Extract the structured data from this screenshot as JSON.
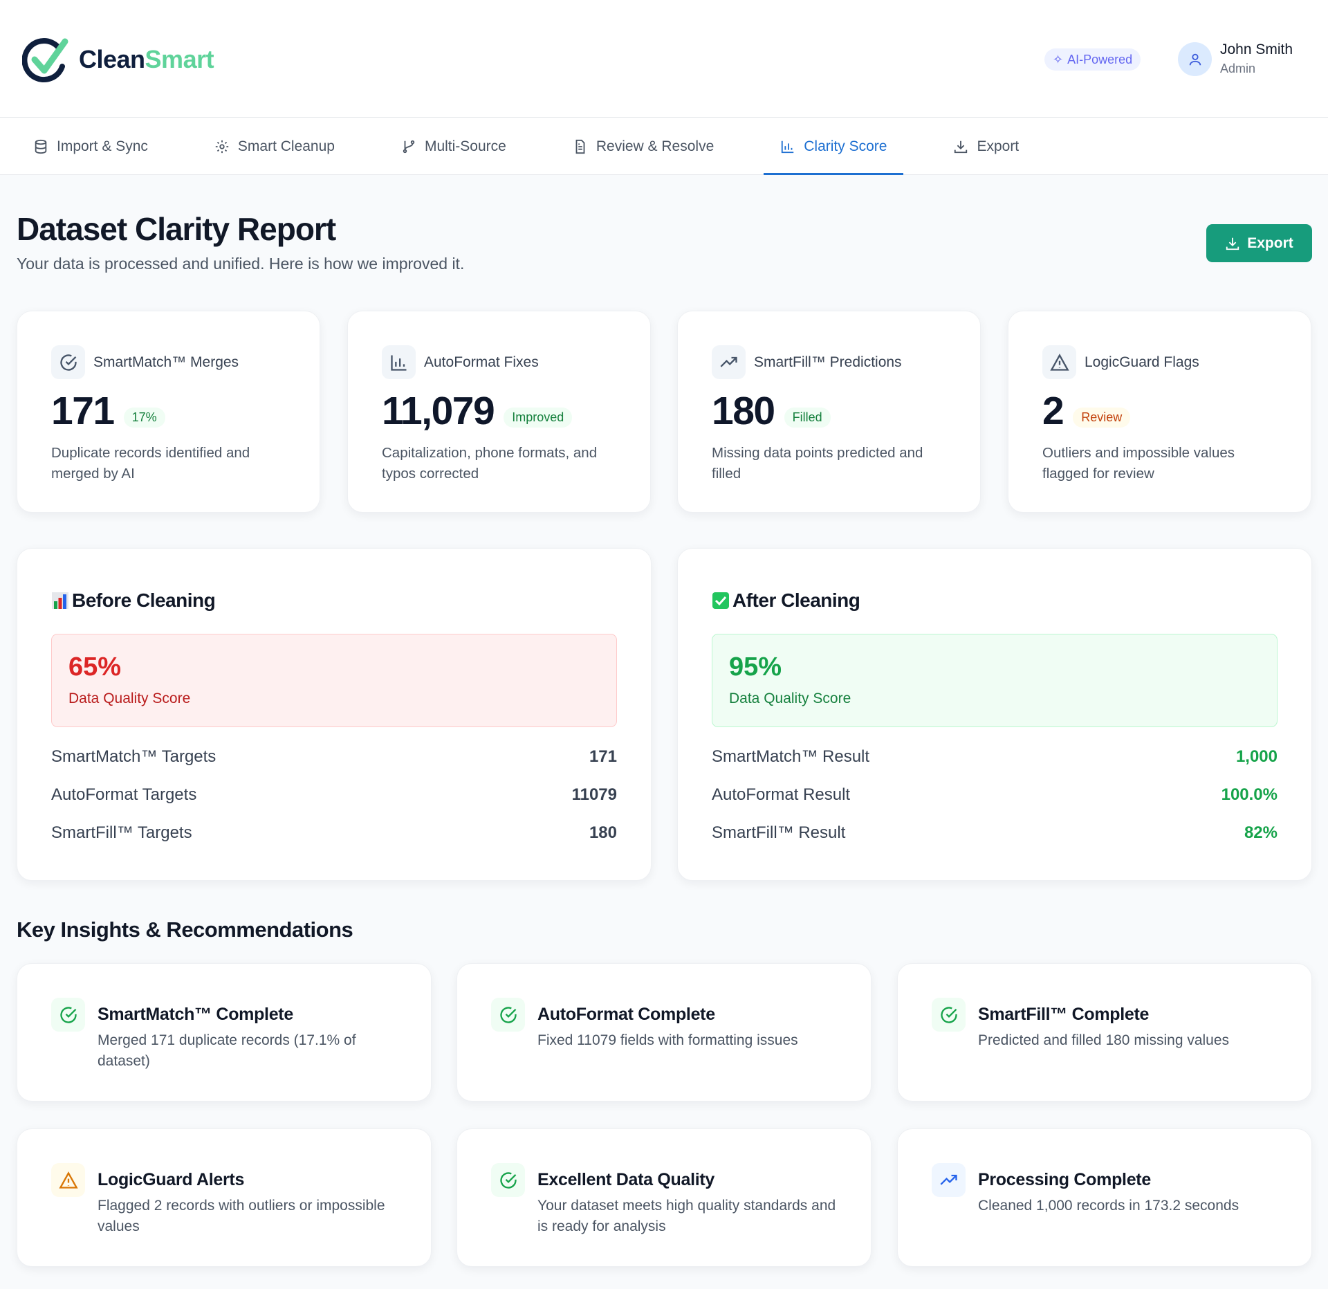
{
  "brand": {
    "name_part1": "Clean",
    "name_part2": "Smart"
  },
  "header": {
    "badge": "AI-Powered",
    "user_name": "John Smith",
    "user_role": "Admin"
  },
  "nav": {
    "tabs": [
      {
        "label": "Import & Sync",
        "icon": "database-icon"
      },
      {
        "label": "Smart Cleanup",
        "icon": "gear-icon"
      },
      {
        "label": "Multi-Source",
        "icon": "git-branch-icon"
      },
      {
        "label": "Review & Resolve",
        "icon": "document-icon"
      },
      {
        "label": "Clarity Score",
        "icon": "bar-chart-icon",
        "active": true
      },
      {
        "label": "Export",
        "icon": "download-icon"
      }
    ]
  },
  "page": {
    "title": "Dataset Clarity Report",
    "subtitle": "Your data is processed and unified. Here is how we improved it.",
    "export_label": "Export"
  },
  "stats": [
    {
      "label": "SmartMatch™ Merges",
      "value": "171",
      "badge": "17%",
      "desc": "Duplicate records identified and merged by AI"
    },
    {
      "label": "AutoFormat Fixes",
      "value": "11,079",
      "badge": "Improved",
      "desc": "Capitalization, phone formats, and typos corrected"
    },
    {
      "label": "SmartFill™ Predictions",
      "value": "180",
      "badge": "Filled",
      "desc": "Missing data points predicted and filled"
    },
    {
      "label": "LogicGuard Flags",
      "value": "2",
      "badge": "Review",
      "desc": "Outliers and impossible values flagged for review"
    }
  ],
  "before": {
    "title": "Before Cleaning",
    "score": "65%",
    "score_label": "Data Quality Score",
    "rows": [
      {
        "label": "SmartMatch™ Targets",
        "value": "171"
      },
      {
        "label": "AutoFormat Targets",
        "value": "11079"
      },
      {
        "label": "SmartFill™ Targets",
        "value": "180"
      }
    ]
  },
  "after": {
    "title": "After Cleaning",
    "score": "95%",
    "score_label": "Data Quality Score",
    "rows": [
      {
        "label": "SmartMatch™ Result",
        "value": "1,000"
      },
      {
        "label": "AutoFormat Result",
        "value": "100.0%"
      },
      {
        "label": "SmartFill™ Result",
        "value": "82%"
      }
    ]
  },
  "insights": {
    "title": "Key Insights & Recommendations",
    "items": [
      {
        "title": "SmartMatch™ Complete",
        "desc": "Merged 171 duplicate records (17.1% of dataset)",
        "icon": "check-circle-icon"
      },
      {
        "title": "AutoFormat Complete",
        "desc": "Fixed 11079 fields with formatting issues",
        "icon": "check-circle-icon"
      },
      {
        "title": "SmartFill™ Complete",
        "desc": "Predicted and filled 180 missing values",
        "icon": "check-circle-icon"
      },
      {
        "title": "LogicGuard Alerts",
        "desc": "Flagged 2 records with outliers or impossible values",
        "icon": "warning-icon"
      },
      {
        "title": "Excellent Data Quality",
        "desc": "Your dataset meets high quality standards and is ready for analysis",
        "icon": "check-circle-icon"
      },
      {
        "title": "Processing Complete",
        "desc": "Cleaned 1,000 records in 173.2 seconds",
        "icon": "trending-up-icon"
      }
    ]
  },
  "colors": {
    "accent": "#1d6fd1",
    "export": "#179c7c",
    "success": "#16a34a",
    "danger": "#dc2626",
    "warning": "#d97706"
  }
}
